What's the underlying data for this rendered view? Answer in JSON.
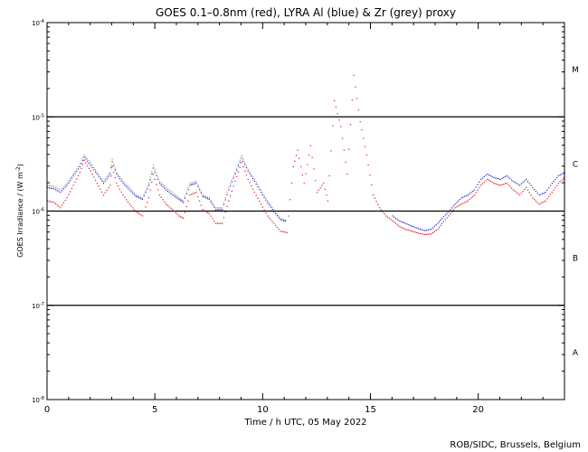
{
  "chart_data": {
    "type": "scatter",
    "title": "GOES 0.1–0.8nm (red), LYRA Al (blue) & Zr (grey) proxy",
    "xlabel": "Time / h UTC, 05 May 2022",
    "ylabel": "GOES Irradiance / (W m",
    "ylabel_sup": "-2",
    "ylabel_close": ")",
    "credit": "ROB/SIDC, Brussels, Belgium",
    "xlim": [
      0,
      24
    ],
    "ylim_log10": [
      -8,
      -4
    ],
    "x_ticks": [
      0,
      5,
      10,
      15,
      20
    ],
    "x_tick_labels": [
      "0",
      "5",
      "10",
      "15",
      "20"
    ],
    "y_ticks_log10": [
      -8,
      -7,
      -6,
      -5,
      -4
    ],
    "y_tick_labels": [
      {
        "base": "10",
        "exp": "-8"
      },
      {
        "base": "10",
        "exp": "-7"
      },
      {
        "base": "10",
        "exp": "-6"
      },
      {
        "base": "10",
        "exp": "-5"
      },
      {
        "base": "10",
        "exp": "-4"
      }
    ],
    "flare_class_lines_log10": [
      -7,
      -6,
      -5
    ],
    "flare_classes": [
      {
        "label": "A",
        "log10_center": -7.5
      },
      {
        "label": "B",
        "log10_center": -6.5
      },
      {
        "label": "C",
        "log10_center": -5.5
      },
      {
        "label": "M",
        "log10_center": -4.5
      }
    ],
    "series": [
      {
        "name": "LYRA Zr (grey)",
        "color": "#999999",
        "x": [
          0,
          0.3,
          0.6,
          0.9,
          1.2,
          1.5,
          1.7,
          2.0,
          2.3,
          2.6,
          2.9,
          3.0,
          3.2,
          3.5,
          3.8,
          4.1,
          4.4,
          4.7,
          4.9,
          5.2,
          5.5,
          5.8,
          6.1,
          6.3,
          6.6,
          6.9,
          7.2,
          7.5,
          7.8,
          8.1,
          8.4,
          8.7,
          9.0,
          9.3,
          9.6,
          9.9,
          10.2,
          10.5,
          10.8,
          11.1
        ],
        "values": [
          1.9e-06,
          1.85e-06,
          1.7e-06,
          2e-06,
          2.5e-06,
          3.2e-06,
          4e-06,
          3.3e-06,
          2.6e-06,
          2.1e-06,
          2.6e-06,
          3.6e-06,
          2.6e-06,
          2.1e-06,
          1.8e-06,
          1.5e-06,
          1.4e-06,
          2e-06,
          3.1e-06,
          2.1e-06,
          1.8e-06,
          1.6e-06,
          1.4e-06,
          1.3e-06,
          2e-06,
          2.1e-06,
          1.5e-06,
          1.4e-06,
          1.1e-06,
          1.1e-06,
          1.8e-06,
          2.6e-06,
          3.9e-06,
          2.8e-06,
          2.2e-06,
          1.7e-06,
          1.3e-06,
          1.05e-06,
          8.5e-07,
          8e-07
        ]
      },
      {
        "name": "LYRA Al (blue)",
        "color": "#1f1fd9",
        "x": [
          0,
          0.3,
          0.6,
          0.9,
          1.2,
          1.5,
          1.7,
          2.0,
          2.3,
          2.6,
          2.9,
          3.0,
          3.2,
          3.5,
          3.8,
          4.1,
          4.4,
          4.7,
          4.9,
          5.2,
          5.5,
          5.8,
          6.1,
          6.3,
          6.6,
          6.9,
          7.2,
          7.5,
          7.8,
          8.1,
          8.4,
          8.7,
          9.0,
          9.3,
          9.6,
          9.9,
          10.2,
          10.5,
          10.8,
          11.1,
          11.4,
          11.6,
          11.9,
          12.2,
          12.5,
          12.8,
          13.0,
          13.3,
          13.6,
          13.9,
          14.2,
          14.5,
          14.8,
          15.1,
          15.4,
          15.7,
          16.0,
          16.3,
          16.6,
          16.9,
          17.2,
          17.5,
          17.8,
          18.1,
          18.3,
          18.6,
          18.9,
          19.2,
          19.5,
          19.8,
          20.1,
          20.4,
          20.7,
          21.0,
          21.3,
          21.6,
          21.9,
          22.2,
          22.5,
          22.8,
          23.1,
          23.4,
          23.7,
          24.0
        ],
        "values": [
          1.8e-06,
          1.75e-06,
          1.6e-06,
          1.9e-06,
          2.4e-06,
          3e-06,
          3.8e-06,
          3.1e-06,
          2.5e-06,
          2e-06,
          2.5e-06,
          3.4e-06,
          2.5e-06,
          2e-06,
          1.7e-06,
          1.45e-06,
          1.35e-06,
          1.9e-06,
          2.9e-06,
          2e-06,
          1.7e-06,
          1.5e-06,
          1.35e-06,
          1.25e-06,
          1.9e-06,
          2e-06,
          1.45e-06,
          1.35e-06,
          1.05e-06,
          1.05e-06,
          1.7e-06,
          2.5e-06,
          3.7e-06,
          2.7e-06,
          2.1e-06,
          1.6e-06,
          1.25e-06,
          1e-06,
          8.2e-07,
          7.8e-07,
          null,
          null,
          null,
          null,
          null,
          null,
          null,
          null,
          null,
          null,
          null,
          null,
          null,
          null,
          null,
          null,
          9e-07,
          8e-07,
          7.5e-07,
          7e-07,
          6.6e-07,
          6.3e-07,
          6.5e-07,
          7.5e-07,
          8.5e-07,
          1e-06,
          1.2e-06,
          1.4e-06,
          1.5e-06,
          1.7e-06,
          2.2e-06,
          2.5e-06,
          2.3e-06,
          2.2e-06,
          2.4e-06,
          2.1e-06,
          1.9e-06,
          2.2e-06,
          1.8e-06,
          1.5e-06,
          1.6e-06,
          2e-06,
          2.4e-06,
          2.6e-06
        ]
      },
      {
        "name": "GOES 0.1-0.8nm (red)",
        "color": "#e01010",
        "x": [
          0,
          0.3,
          0.6,
          0.9,
          1.2,
          1.5,
          1.7,
          2.0,
          2.3,
          2.6,
          2.9,
          3.0,
          3.2,
          3.5,
          3.8,
          4.1,
          4.4,
          4.7,
          4.9,
          5.2,
          5.5,
          5.8,
          6.1,
          6.3,
          6.6,
          6.9,
          7.2,
          7.5,
          7.8,
          8.1,
          8.4,
          8.7,
          9.0,
          9.3,
          9.6,
          9.9,
          10.2,
          10.5,
          10.8,
          11.1,
          11.4,
          11.6,
          11.9,
          12.2,
          12.5,
          12.8,
          13.0,
          13.3,
          13.6,
          13.9,
          14.2,
          14.5,
          14.8,
          15.1,
          15.4,
          15.7,
          16.0,
          16.3,
          16.6,
          16.9,
          17.2,
          17.5,
          17.8,
          18.1,
          18.3,
          18.6,
          18.9,
          19.2,
          19.5,
          19.8,
          20.1,
          20.4,
          20.7,
          21.0,
          21.3,
          21.6,
          21.9,
          22.2,
          22.5,
          22.8,
          23.1,
          23.4,
          23.7,
          24.0
        ],
        "values": [
          1.3e-06,
          1.25e-06,
          1.1e-06,
          1.4e-06,
          1.9e-06,
          2.6e-06,
          3.5e-06,
          2.7e-06,
          2e-06,
          1.5e-06,
          1.9e-06,
          3e-06,
          2e-06,
          1.5e-06,
          1.2e-06,
          1e-06,
          9e-07,
          1.4e-06,
          2.5e-06,
          1.5e-06,
          1.2e-06,
          1.05e-06,
          9e-07,
          8.5e-07,
          1.5e-06,
          1.6e-06,
          1.05e-06,
          9.5e-07,
          7.5e-07,
          7.5e-07,
          1.3e-06,
          2.1e-06,
          3.3e-06,
          2.2e-06,
          1.6e-06,
          1.2e-06,
          9e-07,
          7.5e-07,
          6.2e-07,
          6e-07,
          3e-06,
          4.5e-06,
          2e-06,
          5e-06,
          1.6e-06,
          2e-06,
          1.3e-06,
          1.5e-05,
          8e-06,
          2.5e-06,
          2.8e-05,
          9e-06,
          4e-06,
          1.5e-06,
          1.1e-06,
          9e-07,
          8e-07,
          7e-07,
          6.5e-07,
          6.2e-07,
          5.9e-07,
          5.7e-07,
          5.8e-07,
          6.5e-07,
          7.5e-07,
          9e-07,
          1.1e-06,
          1.2e-06,
          1.3e-06,
          1.5e-06,
          1.9e-06,
          2.2e-06,
          2e-06,
          1.9e-06,
          2e-06,
          1.7e-06,
          1.5e-06,
          1.8e-06,
          1.4e-06,
          1.2e-06,
          1.3e-06,
          1.6e-06,
          2e-06,
          2.3e-06
        ]
      }
    ]
  }
}
